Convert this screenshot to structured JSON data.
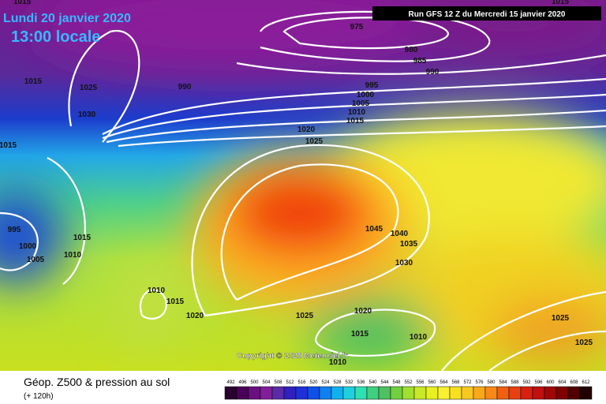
{
  "header": {
    "date": "Lundi 20 janvier 2020",
    "time": "13:00 locale",
    "run": "Run GFS 12 Z du Mercredi 15 janvier 2020"
  },
  "isobar_labels": [
    "1015",
    "1015",
    "975",
    "980",
    "985",
    "990",
    "990",
    "1015",
    "1025",
    "1030",
    "995",
    "1000",
    "1005",
    "1010",
    "1015",
    "1020",
    "1025",
    "1015",
    "995",
    "1000",
    "1005",
    "1015",
    "1010",
    "1045",
    "1040",
    "1035",
    "1030",
    "1010",
    "1015",
    "1020",
    "1025",
    "1020",
    "1015",
    "1010",
    "1010",
    "1025",
    "1025"
  ],
  "copyright": "Copyright © 2020 Meteociel.fr",
  "legend": {
    "title": "Géop. Z500 & pression au sol",
    "lead": "(+ 120h)",
    "scale": [
      492,
      496,
      500,
      504,
      508,
      512,
      516,
      520,
      524,
      528,
      532,
      536,
      540,
      544,
      548,
      552,
      556,
      560,
      564,
      568,
      572,
      576,
      580,
      584,
      588,
      592,
      596,
      600,
      604,
      608,
      612
    ]
  }
}
